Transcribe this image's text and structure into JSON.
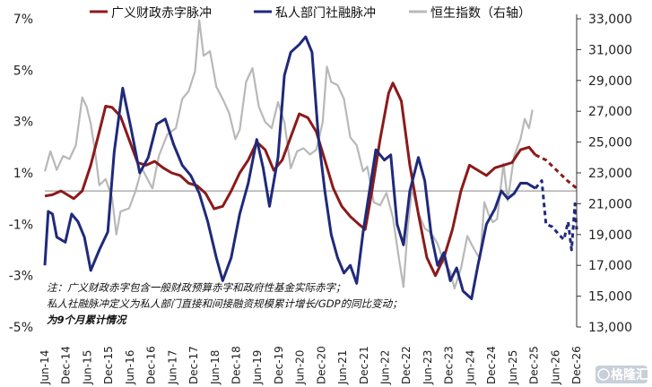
{
  "chart_data": {
    "type": "line",
    "legend": {
      "placement": "top",
      "items": [
        {
          "label": "广义财政赤字脉冲",
          "color": "#8b1a1a",
          "style": "solid"
        },
        {
          "label": "私人部门社融脉冲",
          "color": "#1f2a7a",
          "style": "solid"
        },
        {
          "label": "恒生指数（右轴）",
          "color": "#b8b8b8",
          "style": "solid"
        }
      ]
    },
    "y_left": {
      "ticks": [
        "7%",
        "5%",
        "3%",
        "1%",
        "-1%",
        "-3%",
        "-5%"
      ],
      "range": [
        -5,
        7
      ]
    },
    "y_right": {
      "ticks": [
        "33,000",
        "31,000",
        "29,000",
        "27,000",
        "25,000",
        "23,000",
        "21,000",
        "19,000",
        "17,000",
        "15,000",
        "13,000"
      ],
      "range": [
        13000,
        33000
      ]
    },
    "x_ticks": [
      "Jun-14",
      "Dec-14",
      "Jun-15",
      "Dec-15",
      "Jun-16",
      "Dec-16",
      "Jun-17",
      "Dec-17",
      "Jun-18",
      "Dec-18",
      "Jun-19",
      "Dec-19",
      "Jun-20",
      "Dec-20",
      "Jun-21",
      "Dec-21",
      "Jun-22",
      "Dec-22",
      "Jun-23",
      "Dec-23",
      "Jun-24",
      "Dec-24",
      "Jun-25",
      "Dec-25",
      "Jun-26",
      "Dec-26"
    ],
    "x_range": [
      2014.42,
      2026.92
    ],
    "reference_line": {
      "y": 0.3,
      "color": "#888888"
    },
    "series": [
      {
        "name": "广义财政赤字脉冲",
        "axis": "left",
        "color": "#8b1a1a",
        "points": [
          [
            2014.42,
            0.1
          ],
          [
            2014.6,
            0.15
          ],
          [
            2014.8,
            0.3
          ],
          [
            2014.95,
            0.15
          ],
          [
            2015.1,
            0.0
          ],
          [
            2015.3,
            0.3
          ],
          [
            2015.5,
            1.3
          ],
          [
            2015.7,
            2.6
          ],
          [
            2015.85,
            3.6
          ],
          [
            2016.0,
            3.55
          ],
          [
            2016.2,
            3.2
          ],
          [
            2016.4,
            2.3
          ],
          [
            2016.6,
            1.4
          ],
          [
            2016.8,
            1.3
          ],
          [
            2017.0,
            1.45
          ],
          [
            2017.2,
            1.2
          ],
          [
            2017.4,
            1.0
          ],
          [
            2017.6,
            0.9
          ],
          [
            2017.8,
            0.6
          ],
          [
            2018.0,
            0.5
          ],
          [
            2018.2,
            0.2
          ],
          [
            2018.4,
            -0.4
          ],
          [
            2018.6,
            -0.3
          ],
          [
            2018.8,
            0.3
          ],
          [
            2019.0,
            1.0
          ],
          [
            2019.2,
            1.5
          ],
          [
            2019.4,
            2.2
          ],
          [
            2019.6,
            1.9
          ],
          [
            2019.8,
            1.1
          ],
          [
            2020.0,
            1.5
          ],
          [
            2020.2,
            2.4
          ],
          [
            2020.4,
            3.3
          ],
          [
            2020.6,
            3.15
          ],
          [
            2020.8,
            2.6
          ],
          [
            2021.0,
            1.5
          ],
          [
            2021.2,
            0.4
          ],
          [
            2021.4,
            -0.3
          ],
          [
            2021.6,
            -0.7
          ],
          [
            2021.8,
            -1.0
          ],
          [
            2021.95,
            -1.2
          ],
          [
            2022.1,
            0.2
          ],
          [
            2022.3,
            2.3
          ],
          [
            2022.5,
            4.1
          ],
          [
            2022.6,
            4.5
          ],
          [
            2022.8,
            3.8
          ],
          [
            2023.0,
            1.3
          ],
          [
            2023.2,
            -0.6
          ],
          [
            2023.4,
            -2.3
          ],
          [
            2023.6,
            -3.0
          ],
          [
            2023.8,
            -2.3
          ],
          [
            2024.0,
            -1.2
          ],
          [
            2024.2,
            0.3
          ],
          [
            2024.4,
            1.3
          ],
          [
            2024.6,
            1.1
          ],
          [
            2024.8,
            0.9
          ],
          [
            2025.0,
            1.2
          ],
          [
            2025.2,
            1.3
          ],
          [
            2025.4,
            1.4
          ],
          [
            2025.6,
            1.9
          ],
          [
            2025.8,
            2.0
          ],
          [
            2025.95,
            1.7
          ]
        ]
      },
      {
        "name": "广义财政赤字脉冲（预测）",
        "axis": "left",
        "color": "#8b1a1a",
        "dashed": true,
        "points": [
          [
            2025.95,
            1.7
          ],
          [
            2026.2,
            1.5
          ],
          [
            2026.45,
            1.1
          ],
          [
            2026.7,
            0.7
          ],
          [
            2026.92,
            0.4
          ]
        ]
      },
      {
        "name": "私人部门社融脉冲",
        "axis": "left",
        "color": "#1f2a7a",
        "points": [
          [
            2014.42,
            -2.6
          ],
          [
            2014.5,
            -0.5
          ],
          [
            2014.6,
            -0.6
          ],
          [
            2014.7,
            -1.5
          ],
          [
            2014.9,
            -1.7
          ],
          [
            2015.05,
            -0.6
          ],
          [
            2015.2,
            -0.9
          ],
          [
            2015.35,
            -1.5
          ],
          [
            2015.5,
            -2.8
          ],
          [
            2015.7,
            -2.0
          ],
          [
            2015.9,
            -1.3
          ],
          [
            2016.05,
            1.8
          ],
          [
            2016.25,
            4.3
          ],
          [
            2016.45,
            2.7
          ],
          [
            2016.65,
            1.0
          ],
          [
            2016.85,
            1.6
          ],
          [
            2017.05,
            2.9
          ],
          [
            2017.25,
            3.1
          ],
          [
            2017.45,
            2.1
          ],
          [
            2017.65,
            1.3
          ],
          [
            2017.85,
            0.9
          ],
          [
            2018.05,
            0.2
          ],
          [
            2018.25,
            -0.9
          ],
          [
            2018.45,
            -2.3
          ],
          [
            2018.6,
            -3.2
          ],
          [
            2018.8,
            -2.3
          ],
          [
            2019.0,
            -0.6
          ],
          [
            2019.2,
            0.6
          ],
          [
            2019.4,
            2.3
          ],
          [
            2019.55,
            1.2
          ],
          [
            2019.7,
            -0.3
          ],
          [
            2019.9,
            1.6
          ],
          [
            2020.05,
            4.8
          ],
          [
            2020.2,
            5.7
          ],
          [
            2020.4,
            6.0
          ],
          [
            2020.55,
            6.3
          ],
          [
            2020.7,
            5.7
          ],
          [
            2020.85,
            2.4
          ],
          [
            2021.0,
            0.3
          ],
          [
            2021.15,
            -1.4
          ],
          [
            2021.3,
            -2.3
          ],
          [
            2021.45,
            -2.9
          ],
          [
            2021.6,
            -2.6
          ],
          [
            2021.75,
            -3.3
          ],
          [
            2021.9,
            -1.3
          ],
          [
            2022.05,
            0.3
          ],
          [
            2022.2,
            1.9
          ],
          [
            2022.4,
            1.5
          ],
          [
            2022.55,
            1.7
          ],
          [
            2022.7,
            -1.0
          ],
          [
            2022.85,
            -1.8
          ],
          [
            2023.0,
            0.3
          ],
          [
            2023.2,
            1.6
          ],
          [
            2023.35,
            0.7
          ],
          [
            2023.5,
            -1.4
          ],
          [
            2023.65,
            -2.6
          ],
          [
            2023.8,
            -2.1
          ],
          [
            2023.95,
            -3.2
          ],
          [
            2024.1,
            -2.7
          ],
          [
            2024.25,
            -3.6
          ],
          [
            2024.45,
            -3.9
          ],
          [
            2024.6,
            -2.6
          ],
          [
            2024.8,
            -1.0
          ],
          [
            2025.0,
            -0.4
          ],
          [
            2025.15,
            0.3
          ],
          [
            2025.3,
            0.0
          ],
          [
            2025.45,
            0.2
          ],
          [
            2025.6,
            0.6
          ],
          [
            2025.75,
            0.6
          ],
          [
            2025.95,
            0.4
          ]
        ]
      },
      {
        "name": "私人部门社融脉冲（预测）",
        "axis": "left",
        "color": "#1f2a7a",
        "dashed": true,
        "points": [
          [
            2025.95,
            0.4
          ],
          [
            2026.1,
            0.7
          ],
          [
            2026.2,
            -1.0
          ],
          [
            2026.35,
            -1.1
          ],
          [
            2026.5,
            -1.4
          ],
          [
            2026.62,
            -1.6
          ],
          [
            2026.72,
            -0.9
          ],
          [
            2026.8,
            -2.0
          ],
          [
            2026.88,
            -0.2
          ],
          [
            2026.92,
            -1.2
          ]
        ]
      },
      {
        "name": "恒生指数（右轴）",
        "axis": "right",
        "color": "#b8b8b8",
        "points": [
          [
            2014.42,
            23100
          ],
          [
            2014.55,
            24400
          ],
          [
            2014.7,
            23200
          ],
          [
            2014.85,
            24100
          ],
          [
            2015.0,
            23900
          ],
          [
            2015.15,
            24800
          ],
          [
            2015.3,
            27900
          ],
          [
            2015.4,
            27300
          ],
          [
            2015.5,
            26200
          ],
          [
            2015.6,
            24400
          ],
          [
            2015.7,
            22200
          ],
          [
            2015.85,
            22600
          ],
          [
            2016.0,
            21400
          ],
          [
            2016.1,
            19000
          ],
          [
            2016.2,
            20500
          ],
          [
            2016.4,
            20700
          ],
          [
            2016.55,
            21800
          ],
          [
            2016.7,
            23300
          ],
          [
            2016.85,
            22500
          ],
          [
            2016.95,
            22000
          ],
          [
            2017.1,
            24100
          ],
          [
            2017.3,
            25500
          ],
          [
            2017.5,
            25900
          ],
          [
            2017.65,
            27800
          ],
          [
            2017.8,
            28300
          ],
          [
            2017.95,
            29600
          ],
          [
            2018.05,
            32900
          ],
          [
            2018.15,
            30600
          ],
          [
            2018.3,
            30900
          ],
          [
            2018.45,
            28600
          ],
          [
            2018.6,
            27800
          ],
          [
            2018.75,
            26900
          ],
          [
            2018.9,
            25200
          ],
          [
            2019.0,
            25800
          ],
          [
            2019.15,
            28900
          ],
          [
            2019.3,
            29800
          ],
          [
            2019.45,
            27300
          ],
          [
            2019.6,
            26300
          ],
          [
            2019.75,
            25900
          ],
          [
            2019.9,
            27600
          ],
          [
            2020.05,
            26300
          ],
          [
            2020.2,
            23300
          ],
          [
            2020.35,
            24400
          ],
          [
            2020.5,
            24600
          ],
          [
            2020.65,
            24200
          ],
          [
            2020.8,
            24500
          ],
          [
            2020.95,
            26300
          ],
          [
            2021.05,
            29900
          ],
          [
            2021.15,
            28900
          ],
          [
            2021.3,
            28700
          ],
          [
            2021.45,
            27800
          ],
          [
            2021.6,
            25300
          ],
          [
            2021.75,
            24800
          ],
          [
            2021.9,
            23100
          ],
          [
            2022.0,
            23400
          ],
          [
            2022.15,
            21100
          ],
          [
            2022.3,
            20900
          ],
          [
            2022.45,
            21700
          ],
          [
            2022.6,
            20100
          ],
          [
            2022.75,
            17300
          ],
          [
            2022.85,
            15600
          ],
          [
            2022.95,
            19500
          ],
          [
            2023.05,
            22000
          ],
          [
            2023.2,
            20400
          ],
          [
            2023.35,
            19400
          ],
          [
            2023.5,
            19100
          ],
          [
            2023.65,
            18400
          ],
          [
            2023.8,
            17200
          ],
          [
            2023.95,
            16600
          ],
          [
            2024.05,
            15500
          ],
          [
            2024.2,
            16800
          ],
          [
            2024.35,
            18900
          ],
          [
            2024.5,
            18100
          ],
          [
            2024.65,
            17400
          ],
          [
            2024.75,
            21100
          ],
          [
            2024.85,
            20300
          ],
          [
            2024.95,
            19800
          ],
          [
            2025.05,
            20000
          ],
          [
            2025.2,
            23600
          ],
          [
            2025.3,
            21200
          ],
          [
            2025.45,
            24100
          ],
          [
            2025.6,
            25200
          ],
          [
            2025.7,
            26500
          ],
          [
            2025.8,
            25900
          ],
          [
            2025.88,
            27100
          ]
        ]
      }
    ],
    "annotations": [
      "注：广义财政赤字包含一般财政预算赤字和政府性基金实际赤字；",
      "私人社融脉冲定义为私人部门直接和间接融资规模累计增长/GDP的同比变动；",
      "为9个月累计情况"
    ]
  },
  "watermark": {
    "text": "格隆汇"
  }
}
